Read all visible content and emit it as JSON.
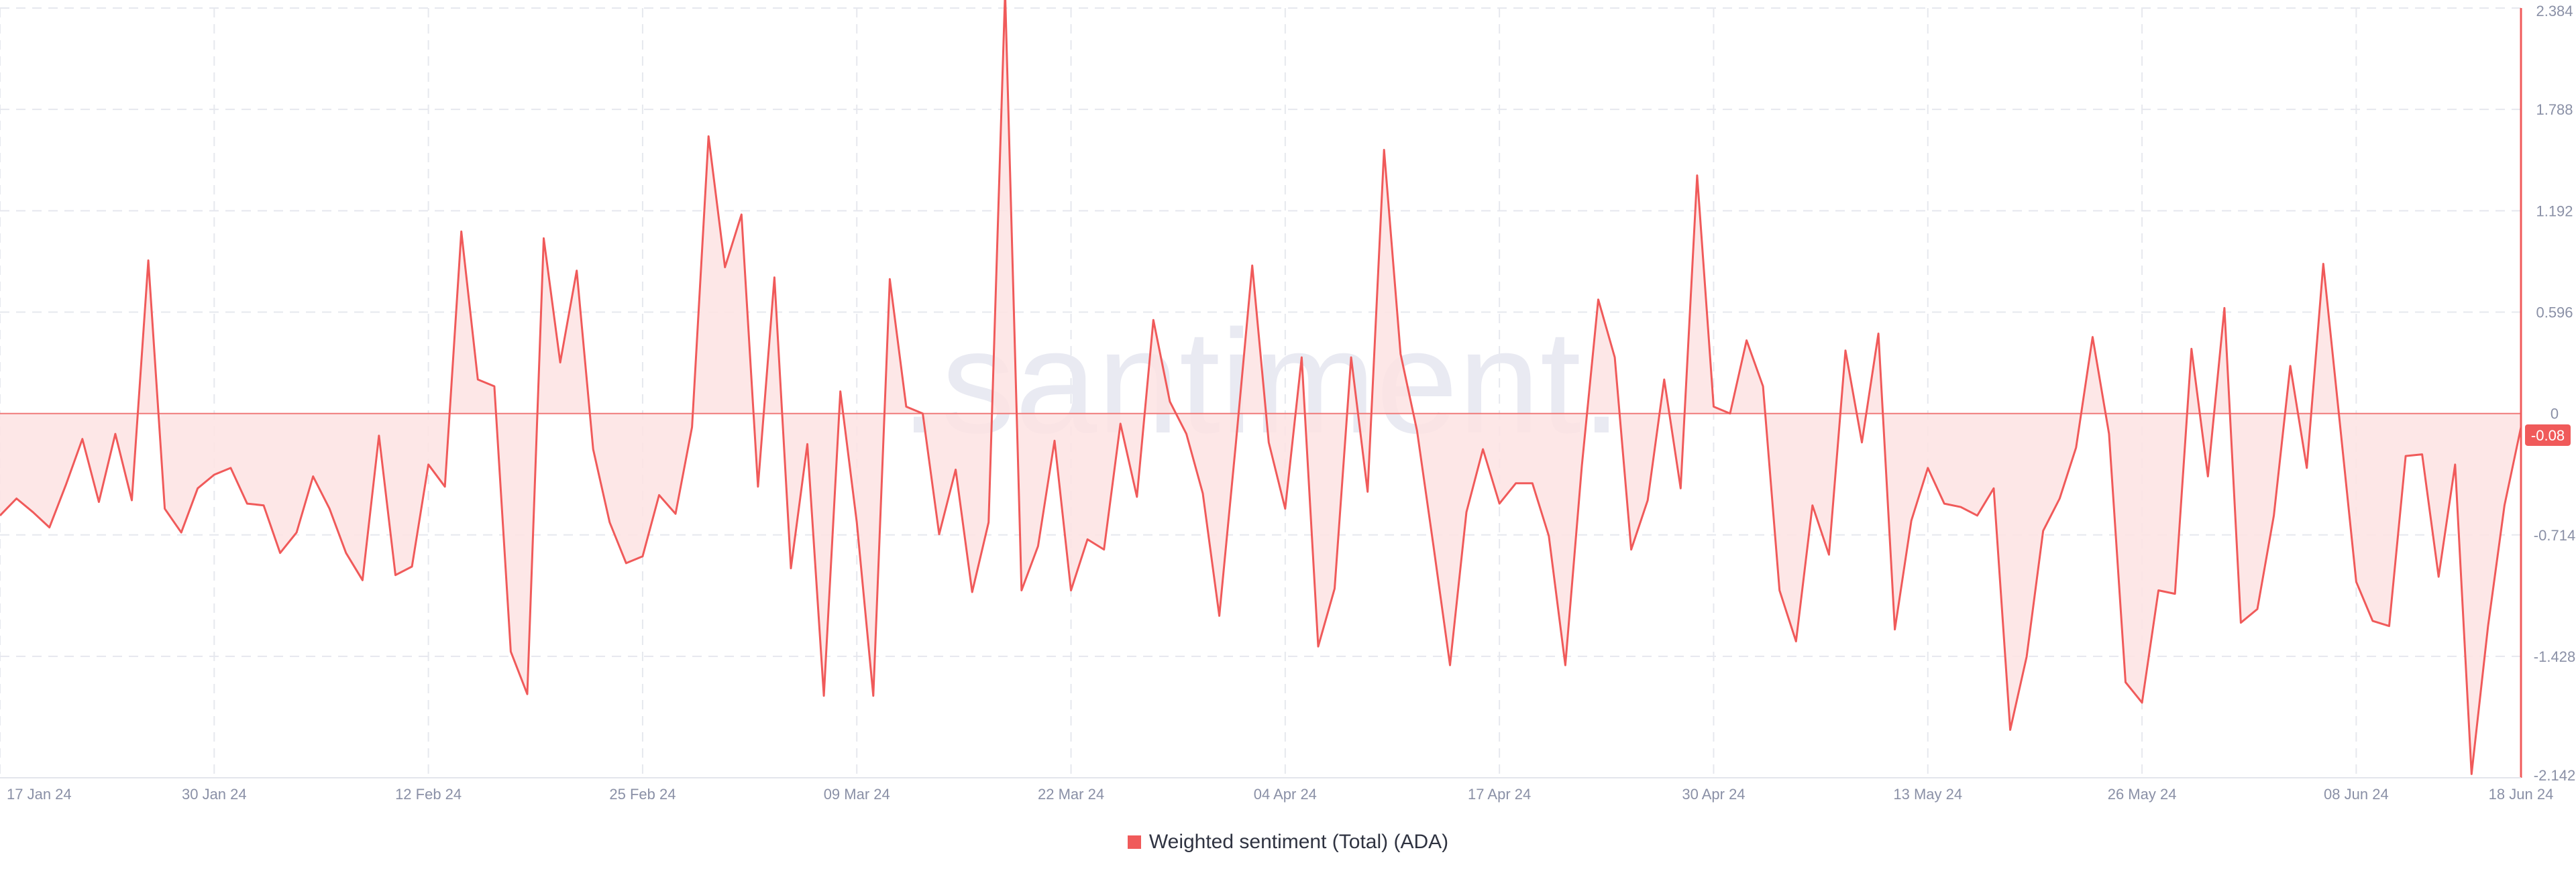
{
  "chart_data": {
    "type": "area",
    "watermark": ".santiment.",
    "xlabel": "",
    "ylabel": "",
    "x_ticks": [
      "17 Jan 24",
      "30 Jan 24",
      "12 Feb 24",
      "25 Feb 24",
      "09 Mar 24",
      "22 Mar 24",
      "04 Apr 24",
      "17 Apr 24",
      "30 Apr 24",
      "13 May 24",
      "26 May 24",
      "08 Jun 24",
      "18 Jun 24"
    ],
    "y_ticks": [
      "2.384",
      "1.788",
      "1.192",
      "0.596",
      "0",
      "-0.714",
      "-1.428",
      "-2.142"
    ],
    "y_tick_values": [
      2.384,
      1.788,
      1.192,
      0.596,
      0,
      -0.714,
      -1.428,
      -2.142
    ],
    "ylim": [
      -2.142,
      2.384
    ],
    "x_start": "2024-01-17",
    "x_end": "2024-06-18",
    "grid": true,
    "legend_position": "bottom-center",
    "current_value_label": "-0.08",
    "colors": {
      "line": "#f05a5a",
      "fill": "#fde3e3",
      "baseline": "#f07a7a",
      "grid": "#e6e8ee",
      "tick_text": "#8a90a6",
      "badge": "#f05a5a",
      "watermark": "#e9eaf2"
    },
    "series": [
      {
        "name": "Weighted sentiment (Total) (ADA)",
        "values": [
          -0.6,
          -0.5,
          -0.58,
          -0.67,
          -0.42,
          -0.15,
          -0.52,
          -0.12,
          -0.51,
          0.9,
          -0.56,
          -0.7,
          -0.44,
          -0.36,
          -0.32,
          -0.53,
          -0.54,
          -0.82,
          -0.7,
          -0.37,
          -0.56,
          -0.82,
          -0.98,
          -0.13,
          -0.95,
          -0.9,
          -0.3,
          -0.43,
          1.07,
          0.2,
          0.16,
          -1.4,
          -1.65,
          1.03,
          0.3,
          0.84,
          -0.21,
          -0.64,
          -0.88,
          -0.84,
          -0.48,
          -0.59,
          -0.08,
          1.63,
          0.86,
          1.17,
          -0.43,
          0.8,
          -0.91,
          -0.18,
          -1.66,
          0.13,
          -0.64,
          -1.66,
          0.79,
          0.04,
          0.0,
          -0.71,
          -0.33,
          -1.05,
          -0.64,
          2.48,
          -1.04,
          -0.78,
          -0.16,
          -1.04,
          -0.74,
          -0.8,
          -0.06,
          -0.49,
          0.55,
          0.07,
          -0.12,
          -0.47,
          -1.19,
          -0.18,
          0.87,
          -0.17,
          -0.56,
          0.33,
          -1.37,
          -1.03,
          0.33,
          -0.46,
          1.55,
          0.35,
          -0.1,
          -0.78,
          -1.48,
          -0.58,
          -0.21,
          -0.53,
          -0.41,
          -0.41,
          -0.72,
          -1.48,
          -0.31,
          0.67,
          0.33,
          -0.8,
          -0.51,
          0.2,
          -0.44,
          1.4,
          0.04,
          0.0,
          0.43,
          0.16,
          -1.04,
          -1.34,
          -0.54,
          -0.83,
          0.37,
          -0.17,
          0.47,
          -1.27,
          -0.63,
          -0.32,
          -0.53,
          -0.55,
          -0.6,
          -0.44,
          -1.86,
          -1.43,
          -0.69,
          -0.5,
          -0.2,
          0.45,
          -0.12,
          -1.58,
          -1.7,
          -1.04,
          -1.06,
          0.38,
          -0.37,
          0.62,
          -1.23,
          -1.15,
          -0.6,
          0.28,
          -0.32,
          0.88,
          -0.05,
          -0.99,
          -1.22,
          -1.25,
          -0.25,
          -0.24,
          -0.96,
          -0.3,
          -2.12,
          -1.25,
          -0.54,
          -0.08
        ]
      }
    ]
  }
}
